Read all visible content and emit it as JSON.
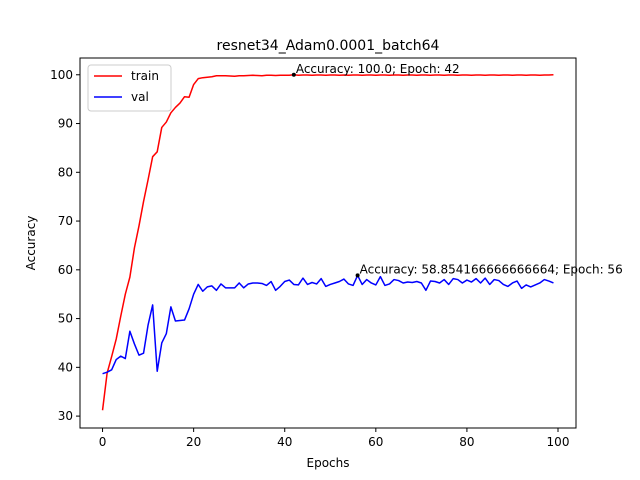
{
  "chart_data": {
    "type": "line",
    "title": "resnet34_Adam0.0001_batch64",
    "xlabel": "Epochs",
    "ylabel": "Accuracy",
    "xlim": [
      -4.95,
      103.95
    ],
    "ylim": [
      27.56,
      103.44
    ],
    "xticks": [
      0,
      20,
      40,
      60,
      80,
      100
    ],
    "yticks": [
      30,
      40,
      50,
      60,
      70,
      80,
      90,
      100
    ],
    "grid": false,
    "legend": "upper-left",
    "series": [
      {
        "name": "train",
        "color": "#ff0000",
        "values": [
          31.2,
          38.8,
          42.2,
          45.8,
          50.5,
          55.0,
          58.5,
          64.5,
          69.0,
          74.0,
          78.5,
          83.2,
          84.2,
          89.2,
          90.3,
          92.2,
          93.3,
          94.2,
          95.5,
          95.4,
          98.0,
          99.2,
          99.4,
          99.5,
          99.6,
          99.8,
          99.8,
          99.8,
          99.75,
          99.7,
          99.8,
          99.8,
          99.85,
          99.9,
          99.85,
          99.8,
          99.9,
          99.9,
          99.85,
          99.9,
          99.9,
          99.9,
          100.0,
          99.9,
          99.95,
          99.95,
          99.9,
          99.95,
          99.95,
          99.9,
          99.95,
          99.95,
          99.9,
          99.95,
          99.9,
          99.95,
          99.95,
          99.9,
          99.95,
          99.95,
          99.9,
          99.95,
          99.95,
          99.9,
          99.95,
          99.95,
          99.9,
          99.95,
          99.95,
          99.9,
          99.95,
          99.95,
          99.9,
          99.95,
          99.95,
          99.9,
          99.95,
          99.95,
          99.9,
          99.95,
          99.95,
          99.9,
          99.95,
          99.95,
          99.9,
          99.95,
          99.95,
          99.9,
          99.95,
          99.95,
          99.9,
          99.95,
          99.95,
          99.9,
          99.95,
          99.95,
          99.9,
          99.95,
          99.95,
          100.0
        ]
      },
      {
        "name": "val",
        "color": "#0000ff",
        "values": [
          38.7,
          39.0,
          39.5,
          41.6,
          42.3,
          41.8,
          47.4,
          44.8,
          42.5,
          42.9,
          48.7,
          52.8,
          39.2,
          45.0,
          46.9,
          52.4,
          49.5,
          49.6,
          49.7,
          52.0,
          55.0,
          57.0,
          55.6,
          56.5,
          56.7,
          55.8,
          57.1,
          56.3,
          56.3,
          56.3,
          57.3,
          56.3,
          57.1,
          57.3,
          57.3,
          57.2,
          56.8,
          57.6,
          55.8,
          56.6,
          57.6,
          57.9,
          57.0,
          56.9,
          58.3,
          57.0,
          57.4,
          57.1,
          58.2,
          56.6,
          57.0,
          57.3,
          57.6,
          58.1,
          57.1,
          56.8,
          58.85,
          57.0,
          58.0,
          57.3,
          56.9,
          58.6,
          56.8,
          57.1,
          58.0,
          57.8,
          57.3,
          57.5,
          57.4,
          57.6,
          57.3,
          55.8,
          57.7,
          57.6,
          57.3,
          58.0,
          57.0,
          58.2,
          58.0,
          57.3,
          57.9,
          57.5,
          58.2,
          57.3,
          58.3,
          57.0,
          58.0,
          57.8,
          57.0,
          56.6,
          57.3,
          57.7,
          56.2,
          56.9,
          56.5,
          56.9,
          57.3,
          58.0,
          57.7,
          57.3
        ]
      }
    ],
    "annotations": [
      {
        "x": 42,
        "y": 100.0,
        "text": "Accuracy: 100.0; Epoch: 42"
      },
      {
        "x": 56,
        "y": 58.854166666666664,
        "text": "Accuracy: 58.854166666666664; Epoch: 56"
      }
    ]
  }
}
